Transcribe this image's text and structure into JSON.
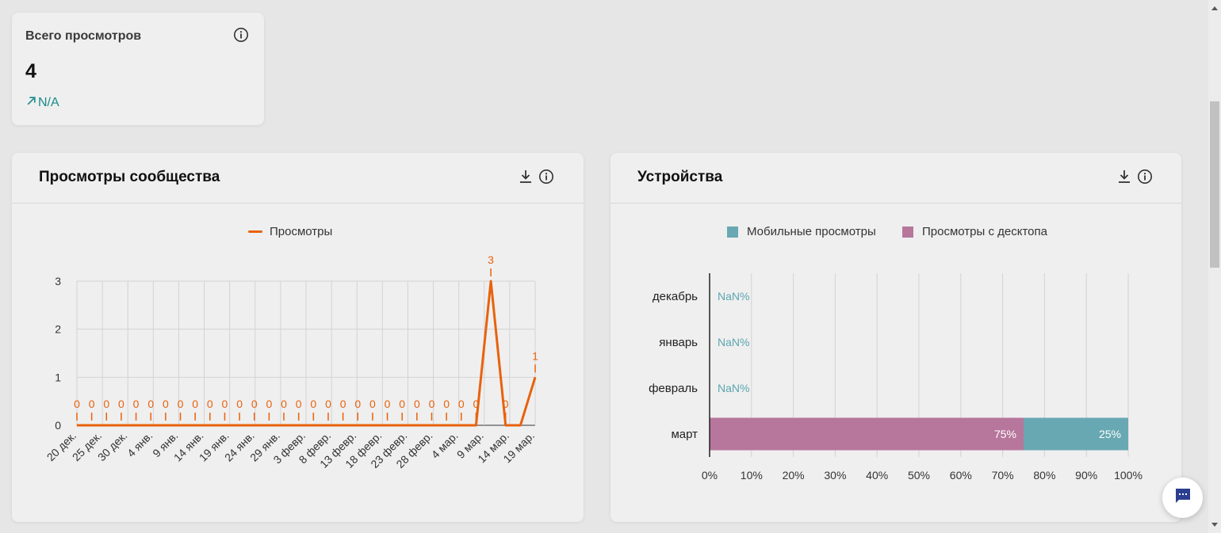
{
  "stat_card": {
    "title": "Всего просмотров",
    "value": "4",
    "trend_text": "N/A",
    "trend_color": "#1a8a8a",
    "info_icon": "info-icon",
    "trend_icon": "arrow-up-right-icon"
  },
  "views_card": {
    "title": "Просмотры сообщества",
    "download_icon": "download-icon",
    "info_icon": "info-icon",
    "legend_label": "Просмотры"
  },
  "devices_card": {
    "title": "Устройства",
    "download_icon": "download-icon",
    "info_icon": "info-icon",
    "legend": [
      "Мобильные просмотры",
      "Просмотры с десктопа"
    ]
  },
  "colors": {
    "line": "#e8620c",
    "mobile": "#68a8b3",
    "desktop": "#b7779c",
    "nan_text": "#5aa6b0"
  },
  "chart_data": [
    {
      "type": "line",
      "series": [
        {
          "name": "Просмотры",
          "values": [
            0,
            0,
            0,
            0,
            0,
            0,
            0,
            0,
            0,
            0,
            0,
            0,
            0,
            0,
            0,
            0,
            0,
            0,
            0,
            0,
            0,
            0,
            0,
            0,
            0,
            0,
            0,
            0,
            3,
            0,
            0,
            1
          ]
        }
      ],
      "data_labels": [
        "0",
        "0",
        "0",
        "0",
        "0",
        "0",
        "0",
        "0",
        "0",
        "0",
        "0",
        "0",
        "0",
        "0",
        "0",
        "0",
        "0",
        "0",
        "0",
        "0",
        "0",
        "0",
        "0",
        "0",
        "0",
        "0",
        "0",
        "0",
        "3",
        "0",
        "",
        "1"
      ],
      "x_ticks": [
        "20 дек.",
        "25 дек.",
        "30 дек.",
        "4 янв.",
        "9 янв.",
        "14 янв.",
        "19 янв.",
        "24 янв.",
        "29 янв.",
        "3 февр.",
        "8 февр.",
        "13 февр.",
        "18 февр.",
        "23 февр.",
        "28 февр.",
        "4 мар.",
        "9 мар.",
        "14 мар.",
        "19 мар."
      ],
      "y_ticks": [
        "0",
        "1",
        "2",
        "3"
      ],
      "ylim": [
        0,
        3
      ],
      "legend": "top-center",
      "grid": true
    },
    {
      "type": "bar",
      "orientation": "horizontal",
      "stacked": "percent",
      "categories": [
        "декабрь",
        "январь",
        "февраль",
        "март"
      ],
      "series": [
        {
          "name": "Просмотры с десктопа",
          "values": [
            null,
            null,
            null,
            75
          ]
        },
        {
          "name": "Мобильные просмотры",
          "values": [
            null,
            null,
            null,
            25
          ]
        }
      ],
      "data_labels": {
        "empty": "NaN%",
        "desktop": [
          "",
          "",
          "",
          "75%"
        ],
        "mobile": [
          "",
          "",
          "",
          "25%"
        ]
      },
      "x_ticks": [
        "0%",
        "10%",
        "20%",
        "30%",
        "40%",
        "50%",
        "60%",
        "70%",
        "80%",
        "90%",
        "100%"
      ],
      "xlim": [
        0,
        100
      ],
      "legend": "top-center",
      "grid": true
    }
  ]
}
